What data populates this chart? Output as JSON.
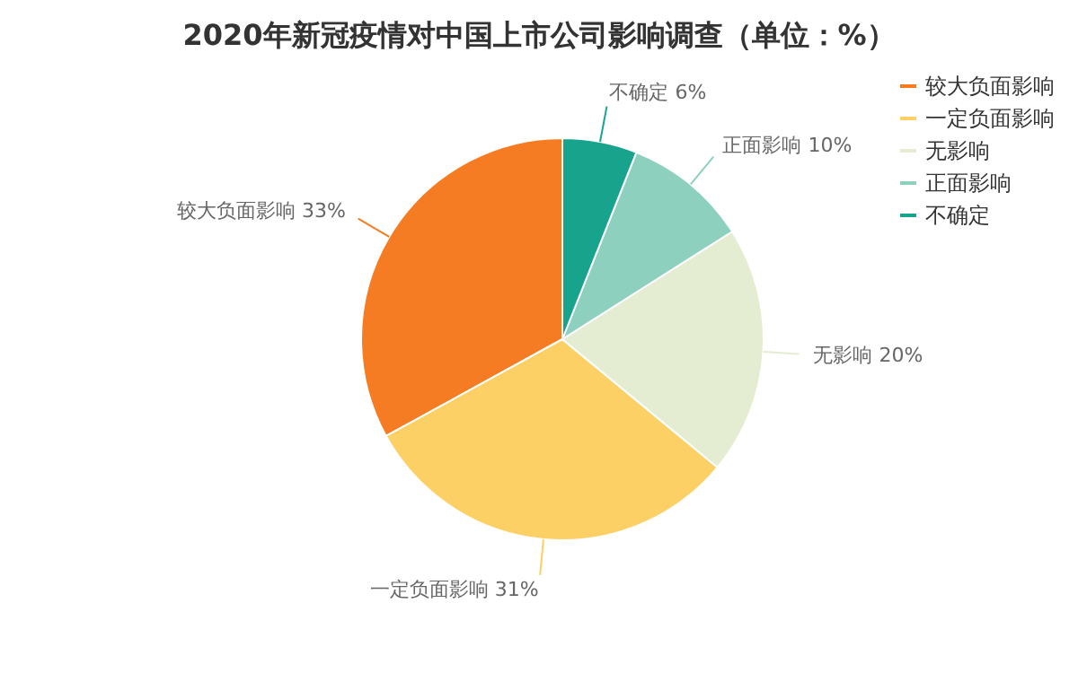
{
  "chart_data": {
    "type": "pie",
    "title": "2020年新冠疫情对中国上市公司影响调查（单位：%）",
    "categories": [
      "较大负面影响",
      "一定负面影响",
      "无影响",
      "正面影响",
      "不确定"
    ],
    "values": [
      33,
      31,
      20,
      10,
      6
    ],
    "colors": [
      "#f57c22",
      "#fcd064",
      "#e4ecd2",
      "#8dd0bd",
      "#18a48c"
    ],
    "value_labels": [
      "较大负面影响 33%",
      "一定负面影响 31%",
      "无影响 20%",
      "正面影响 10%",
      "不确定 6%"
    ],
    "legend": "top right"
  }
}
